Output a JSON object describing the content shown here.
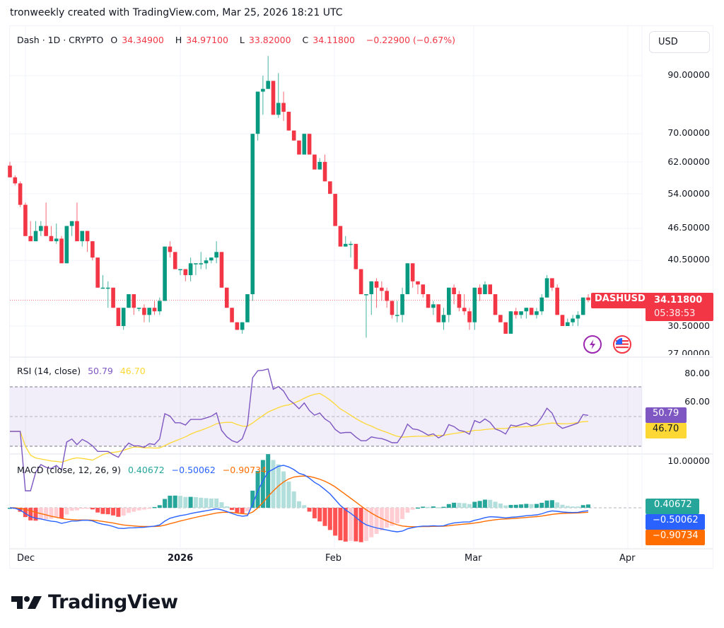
{
  "caption": "tronweekly created with TradingView.com, Mar 25, 2026 18:21 UTC",
  "header": {
    "symbol": "Dash · 1D · CRYPTO",
    "open_label": "O",
    "open": "34.34900",
    "high_label": "H",
    "high": "34.97100",
    "low_label": "L",
    "low": "33.82000",
    "close_label": "C",
    "close": "34.11800",
    "change": "−0.22900 (−0.67%)"
  },
  "currency_button": "USD",
  "price_axis": {
    "ticks": [
      "90.00000",
      "70.00000",
      "62.00000",
      "54.00000",
      "46.50000",
      "40.50000",
      "30.50000",
      "27.00000"
    ],
    "last_price_tag": {
      "symbol": "DASHUSD",
      "price": "34.11800",
      "countdown": "05:38:53"
    }
  },
  "rsi": {
    "title": "RSI (14, close)",
    "value": "50.79",
    "ma_value": "46.70",
    "ticks": [
      "80.00",
      "60.00"
    ]
  },
  "macd": {
    "title": "MACD (close, 12, 26, 9)",
    "histogram": "0.40672",
    "macd": "−0.50062",
    "signal": "−0.90734",
    "ticks": [
      "10.00000"
    ]
  },
  "time_axis": [
    "Dec",
    "2026",
    "Feb",
    "Mar",
    "Apr"
  ],
  "logo_text": "TradingView",
  "colors": {
    "up": "#089981",
    "down": "#f23645",
    "rsi": "#7e57c2",
    "rsi_ma": "#fdd835",
    "macd": "#2962ff",
    "signal": "#ff6d00",
    "hist_up_strong": "#26a69a",
    "hist_up_weak": "#b2dfdb",
    "hist_down_strong": "#ff5252",
    "hist_down_weak": "#ffcdd2"
  },
  "chart_data": [
    {
      "type": "candlestick",
      "title": "Dash · 1D · CRYPTO (DASHUSD)",
      "ylabel": "USD",
      "yscale": "log",
      "ylim": [
        27,
        100
      ],
      "x_ticks": [
        "Dec",
        "2026",
        "Feb",
        "Mar",
        "Apr"
      ],
      "x_range": [
        "2025-11-27",
        "2026-03-25"
      ],
      "ohlc_approx": [
        [
          61,
          62,
          58,
          58
        ],
        [
          58,
          58.5,
          56,
          56.5
        ],
        [
          56.5,
          57,
          51,
          51.5
        ],
        [
          51.5,
          52,
          45,
          45
        ],
        [
          45,
          48,
          44,
          44
        ],
        [
          44,
          48,
          44,
          46
        ],
        [
          46,
          48,
          45,
          47
        ],
        [
          47,
          52,
          45,
          45
        ],
        [
          45,
          47,
          44,
          44
        ],
        [
          44,
          47.5,
          43.5,
          44.5
        ],
        [
          44.5,
          45,
          40,
          40
        ],
        [
          40,
          47,
          40,
          47
        ],
        [
          47,
          48,
          45,
          48
        ],
        [
          48,
          52,
          44,
          44
        ],
        [
          44,
          46,
          43,
          46
        ],
        [
          46,
          46,
          42,
          44
        ],
        [
          44,
          44,
          40.5,
          41
        ],
        [
          41,
          41,
          36,
          36
        ],
        [
          36,
          38,
          36,
          36
        ],
        [
          36,
          37,
          33,
          36
        ],
        [
          36,
          36,
          33,
          33
        ],
        [
          33,
          33,
          30.5,
          30.5
        ],
        [
          30.5,
          33,
          30,
          33
        ],
        [
          33,
          34.5,
          33,
          35
        ],
        [
          35,
          35,
          32,
          33
        ],
        [
          33,
          33,
          32.5,
          33
        ],
        [
          33,
          33.5,
          31,
          32
        ],
        [
          32,
          33,
          31,
          33
        ],
        [
          33,
          34,
          32,
          32.5
        ],
        [
          32.5,
          34.5,
          32,
          34
        ],
        [
          34,
          43,
          34,
          43
        ],
        [
          43,
          44,
          41,
          42
        ],
        [
          42,
          42,
          39,
          39
        ],
        [
          39,
          39,
          38,
          39
        ],
        [
          39,
          39,
          37,
          38
        ],
        [
          38,
          41,
          37,
          40
        ],
        [
          40,
          40,
          38,
          40
        ],
        [
          40,
          42,
          39,
          40
        ],
        [
          40,
          41,
          39,
          40.5
        ],
        [
          40.5,
          41,
          40,
          41
        ],
        [
          41,
          44,
          40,
          42
        ],
        [
          42,
          42,
          36,
          36
        ],
        [
          36,
          36,
          33,
          33
        ],
        [
          33,
          33,
          31,
          31
        ],
        [
          31,
          31,
          30,
          30
        ],
        [
          30,
          31,
          29.5,
          31
        ],
        [
          31,
          35,
          31,
          35
        ],
        [
          35,
          70,
          34,
          70
        ],
        [
          70,
          81,
          68,
          84
        ],
        [
          84,
          90,
          76,
          85
        ],
        [
          85,
          98,
          85,
          88
        ],
        [
          88,
          88,
          76,
          76
        ],
        [
          76,
          91,
          75,
          80
        ],
        [
          80,
          84,
          74,
          77
        ],
        [
          77,
          77,
          71,
          71
        ],
        [
          71,
          71,
          68,
          68
        ],
        [
          68,
          68,
          64,
          64
        ],
        [
          64,
          70,
          64,
          70
        ],
        [
          70,
          70,
          64,
          64
        ],
        [
          64,
          64,
          60,
          60
        ],
        [
          60,
          63,
          60,
          62
        ],
        [
          62,
          64,
          57,
          57
        ],
        [
          57,
          57,
          54,
          54
        ],
        [
          54,
          54,
          47,
          47
        ],
        [
          47,
          47,
          43,
          43
        ],
        [
          43,
          45,
          43,
          43.5
        ],
        [
          43.5,
          44,
          41,
          43.5
        ],
        [
          43.5,
          43.5,
          39,
          39
        ],
        [
          39,
          39,
          35,
          35
        ],
        [
          35,
          35,
          29,
          35
        ],
        [
          35,
          37,
          32,
          37
        ],
        [
          37,
          37.5,
          33,
          36
        ],
        [
          36,
          37,
          34,
          35.5
        ],
        [
          35.5,
          36,
          33,
          34
        ],
        [
          34,
          34,
          31.5,
          32
        ],
        [
          32,
          34,
          31,
          32
        ],
        [
          32,
          36,
          31,
          35
        ],
        [
          35,
          40,
          35,
          40
        ],
        [
          40,
          40,
          36,
          37
        ],
        [
          37,
          37,
          35,
          36.5
        ],
        [
          36.5,
          36.5,
          34.5,
          35
        ],
        [
          35,
          35,
          33,
          33
        ],
        [
          33,
          34,
          32,
          33.5
        ],
        [
          33.5,
          33.5,
          31,
          31
        ],
        [
          31,
          33,
          30,
          32
        ],
        [
          32,
          36,
          31,
          36
        ],
        [
          36,
          36.5,
          33.5,
          35
        ],
        [
          35,
          35.5,
          32.5,
          33
        ],
        [
          33,
          35,
          32,
          32.5
        ],
        [
          32.5,
          33,
          30,
          31
        ],
        [
          31,
          36,
          30,
          36
        ],
        [
          36,
          36.5,
          34,
          35
        ],
        [
          35,
          37,
          35,
          36.5
        ],
        [
          36.5,
          36.5,
          35,
          35
        ],
        [
          35,
          35,
          32,
          32
        ],
        [
          32,
          32,
          31,
          31
        ],
        [
          31,
          31,
          29.5,
          29.5
        ],
        [
          29.5,
          32.5,
          29.5,
          32.5
        ],
        [
          32.5,
          33,
          31.5,
          32
        ],
        [
          32,
          32.5,
          31.5,
          32.5
        ],
        [
          32.5,
          33,
          31.5,
          33
        ],
        [
          33,
          33,
          32,
          32
        ],
        [
          32,
          33,
          31.5,
          32.5
        ],
        [
          32.5,
          35,
          32,
          34.5
        ],
        [
          34.5,
          38,
          34.5,
          37.5
        ],
        [
          37.5,
          37.5,
          35.5,
          36
        ],
        [
          36,
          36.5,
          32,
          32
        ],
        [
          32,
          32,
          30.5,
          30.5
        ],
        [
          30.5,
          31.5,
          30.5,
          31
        ],
        [
          31,
          32,
          30.5,
          31.5
        ],
        [
          31.5,
          32.5,
          30.5,
          32
        ],
        [
          32,
          34.5,
          32,
          34.5
        ],
        [
          34.5,
          35,
          33.8,
          34.118
        ]
      ]
    },
    {
      "type": "line",
      "title": "RSI (14, close)",
      "ylim": [
        20,
        85
      ],
      "bands": {
        "upper": 70,
        "middle": 50,
        "lower": 30
      },
      "series": [
        {
          "name": "RSI",
          "last": 50.79
        },
        {
          "name": "RSI-based MA",
          "last": 46.7
        }
      ]
    },
    {
      "type": "line+histogram",
      "title": "MACD (close, 12, 26, 9)",
      "series": [
        {
          "name": "Histogram",
          "last": 0.40672
        },
        {
          "name": "MACD",
          "last": -0.50062
        },
        {
          "name": "Signal",
          "last": -0.90734
        }
      ]
    }
  ]
}
